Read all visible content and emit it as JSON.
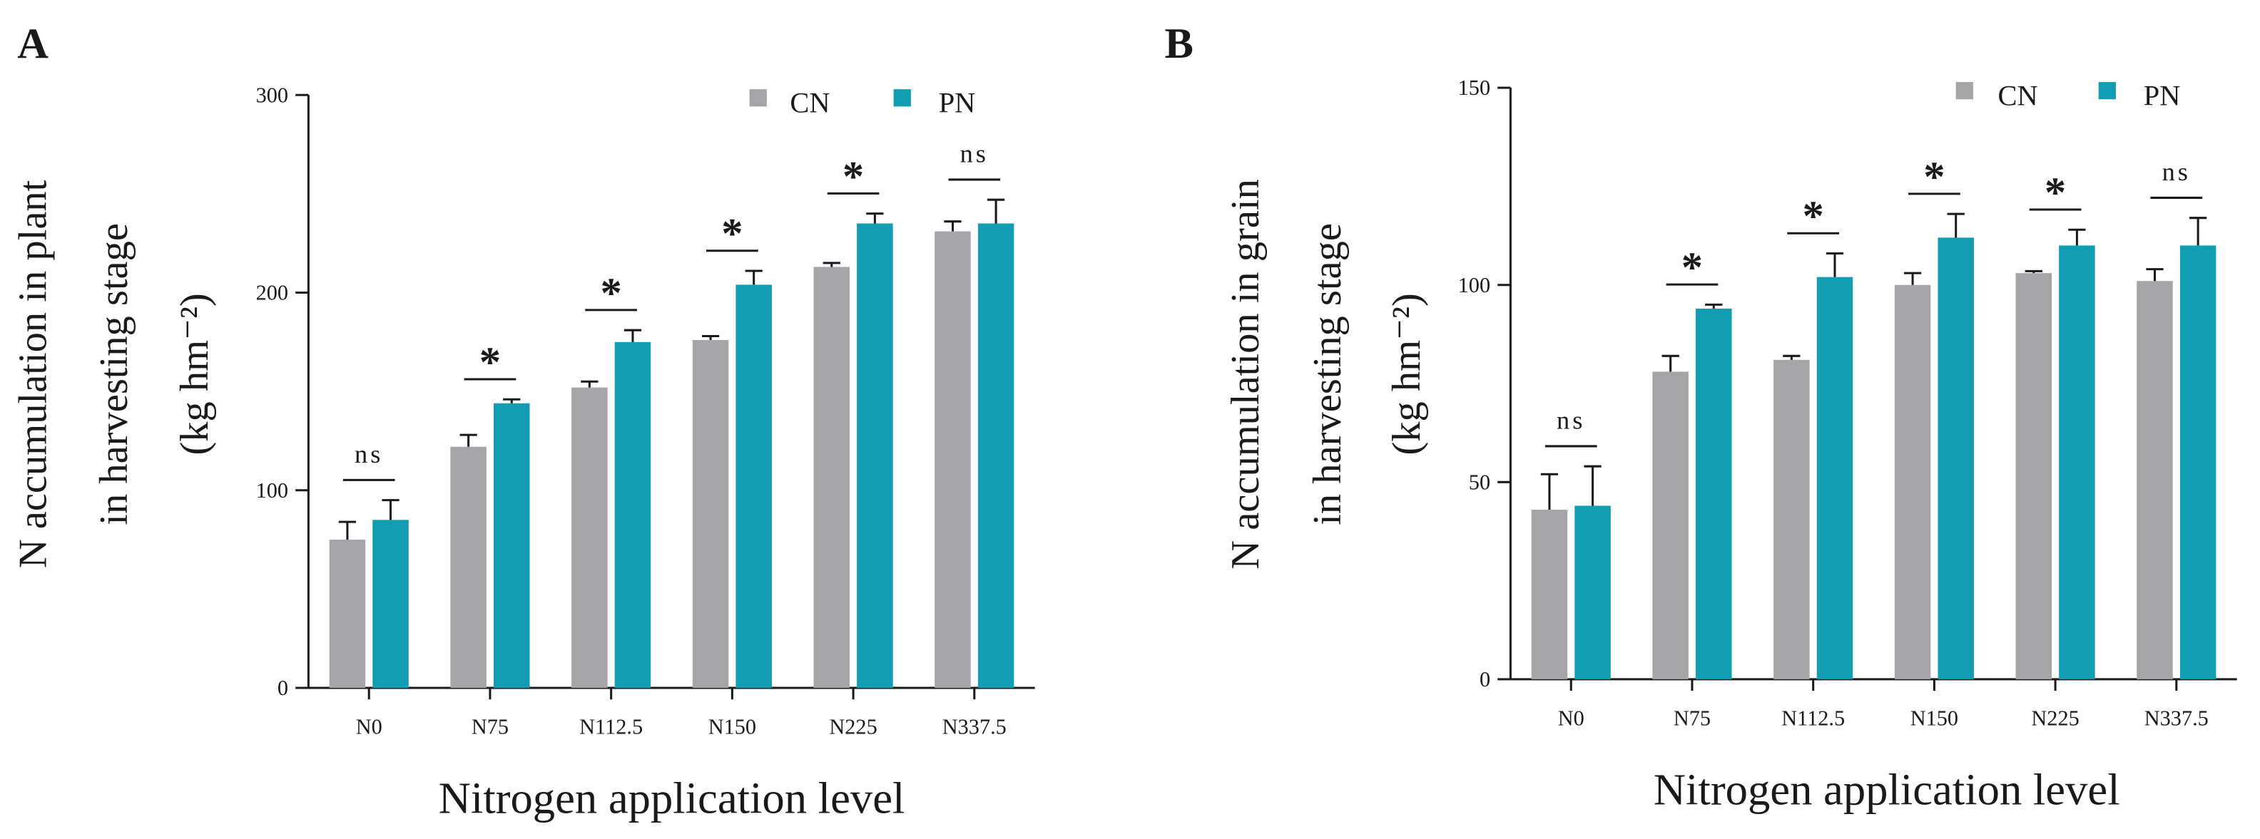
{
  "chart_data": [
    {
      "panel": "A",
      "type": "bar",
      "title": "",
      "ylabel_lines": [
        "N accumulation in plant",
        "in harvesting stage",
        "(kg hm⁻²)"
      ],
      "xlabel": "Nitrogen application level",
      "categories": [
        "N0",
        "N75",
        "N112.5",
        "N150",
        "N225",
        "N337.5"
      ],
      "ylim": [
        0,
        300
      ],
      "yticks": [
        0,
        100,
        200,
        300
      ],
      "legend_position": "top-right",
      "series": [
        {
          "name": "CN",
          "color": "#a5a5a7",
          "values": [
            75,
            122,
            152,
            176,
            213,
            231
          ],
          "errors": [
            9,
            6,
            3,
            2,
            2,
            5
          ]
        },
        {
          "name": "PN",
          "color": "#139db2",
          "values": [
            85,
            144,
            175,
            204,
            235,
            235
          ],
          "errors": [
            10,
            2,
            6,
            7,
            5,
            12
          ]
        }
      ],
      "significance": [
        "ns",
        "*",
        "*",
        "*",
        "*",
        "ns"
      ]
    },
    {
      "panel": "B",
      "type": "bar",
      "title": "",
      "ylabel_lines": [
        "N accumulation in grain",
        "in harvesting stage",
        "(kg hm⁻²)"
      ],
      "xlabel": "Nitrogen application level",
      "categories": [
        "N0",
        "N75",
        "N112.5",
        "N150",
        "N225",
        "N337.5"
      ],
      "ylim": [
        0,
        150
      ],
      "yticks": [
        0,
        50,
        100,
        150
      ],
      "legend_position": "top-right",
      "series": [
        {
          "name": "CN",
          "color": "#a5a5a7",
          "values": [
            43,
            78,
            81,
            100,
            103,
            101
          ],
          "errors": [
            9,
            4,
            1,
            3,
            0.5,
            3
          ]
        },
        {
          "name": "PN",
          "color": "#139db2",
          "values": [
            44,
            94,
            102,
            112,
            110,
            110
          ],
          "errors": [
            10,
            1,
            6,
            6,
            4,
            7
          ]
        }
      ],
      "significance": [
        "ns",
        "*",
        "*",
        "*",
        "*",
        "ns"
      ]
    }
  ]
}
